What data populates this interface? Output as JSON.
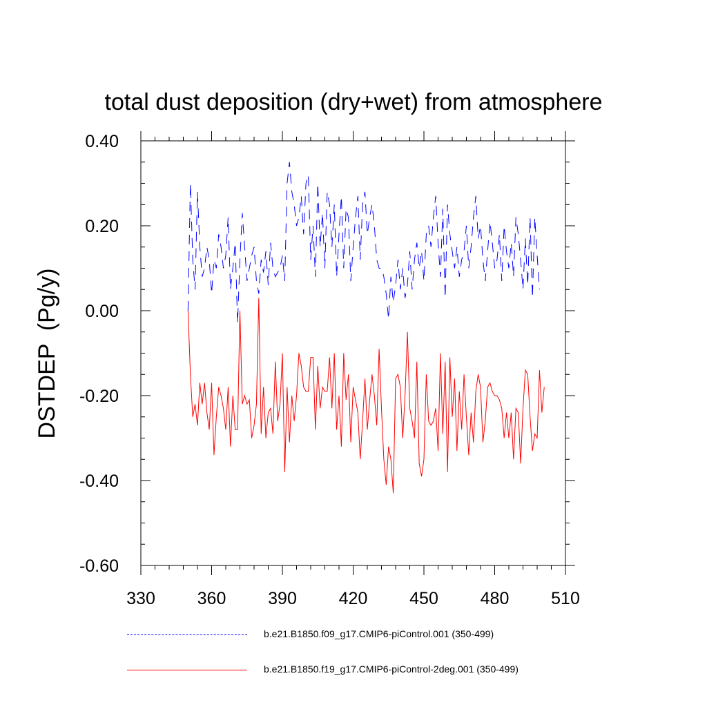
{
  "chart_data": {
    "type": "line",
    "title": "total dust deposition (dry+wet) from atmosphere",
    "xlabel": "",
    "ylabel": "DSTDEP  (Pg/y)",
    "xlim": [
      330,
      510
    ],
    "ylim": [
      -0.6,
      0.4
    ],
    "xticks": [
      330,
      360,
      390,
      420,
      450,
      480,
      510
    ],
    "xtick_labels": [
      "330",
      "360",
      "390",
      "420",
      "450",
      "480",
      "510"
    ],
    "yticks": [
      0.4,
      0.2,
      0.0,
      -0.2,
      -0.4,
      -0.6
    ],
    "ytick_labels": [
      "0.40",
      "0.20",
      "0.00",
      "-0.20",
      "-0.40",
      "-0.60"
    ],
    "x_start": 350,
    "series": [
      {
        "name": "b.e21.B1850.f09_g17.CMIP6-piControl.001 (350-499)",
        "color": "#0000ff",
        "style": "dashed",
        "values": [
          0.0,
          0.3,
          0.12,
          0.05,
          0.28,
          0.15,
          0.08,
          0.1,
          0.15,
          0.12,
          0.04,
          0.12,
          0.1,
          0.18,
          0.15,
          0.1,
          0.13,
          0.22,
          0.05,
          0.1,
          0.16,
          -0.03,
          0.12,
          0.23,
          0.15,
          0.07,
          0.1,
          0.13,
          0.15,
          0.07,
          0.04,
          0.12,
          0.09,
          0.14,
          0.06,
          0.16,
          0.1,
          0.08,
          0.09,
          0.1,
          0.13,
          0.07,
          0.3,
          0.35,
          0.28,
          0.25,
          0.2,
          0.22,
          0.27,
          0.18,
          0.3,
          0.32,
          0.12,
          0.2,
          0.08,
          0.3,
          0.15,
          0.23,
          0.1,
          0.28,
          0.25,
          0.15,
          0.25,
          0.08,
          0.18,
          0.27,
          0.1,
          0.24,
          0.22,
          0.07,
          0.15,
          0.22,
          0.27,
          0.12,
          0.25,
          0.28,
          0.18,
          0.22,
          0.25,
          0.2,
          0.12,
          0.1,
          0.1,
          0.08,
          0.04,
          -0.02,
          0.08,
          0.02,
          0.06,
          0.12,
          0.05,
          0.1,
          0.03,
          0.06,
          0.14,
          0.05,
          0.12,
          0.16,
          0.1,
          0.14,
          0.07,
          0.18,
          0.2,
          0.15,
          0.22,
          0.27,
          0.16,
          0.08,
          0.24,
          0.03,
          0.25,
          0.18,
          0.14,
          0.1,
          0.15,
          0.08,
          0.12,
          0.14,
          0.2,
          0.1,
          0.15,
          0.22,
          0.27,
          0.17,
          0.2,
          0.12,
          0.07,
          0.14,
          0.21,
          0.16,
          0.1,
          0.12,
          0.18,
          0.07,
          0.2,
          0.14,
          0.1,
          0.16,
          0.08,
          0.22,
          0.18,
          0.12,
          0.05,
          0.17,
          0.06,
          0.22,
          0.03,
          0.22,
          0.13,
          0.05
        ]
      },
      {
        "name": "b.e21.B1850.f19_g17.CMIP6-piControl-2deg.001 (350-499)",
        "color": "#ff0000",
        "style": "solid",
        "values": [
          0.0,
          -0.15,
          -0.25,
          -0.22,
          -0.27,
          -0.17,
          -0.22,
          -0.17,
          -0.24,
          -0.28,
          -0.17,
          -0.34,
          -0.25,
          -0.18,
          -0.2,
          -0.23,
          -0.28,
          -0.18,
          -0.32,
          -0.2,
          -0.28,
          -0.28,
          0.0,
          -0.22,
          -0.2,
          -0.22,
          -0.21,
          -0.3,
          -0.27,
          -0.22,
          0.03,
          -0.29,
          -0.18,
          -0.3,
          -0.24,
          -0.23,
          -0.29,
          -0.12,
          -0.26,
          -0.22,
          -0.1,
          -0.38,
          -0.18,
          -0.31,
          -0.2,
          -0.26,
          -0.2,
          -0.1,
          -0.13,
          -0.18,
          -0.19,
          -0.19,
          -0.11,
          -0.11,
          -0.28,
          -0.13,
          -0.23,
          -0.18,
          -0.19,
          -0.19,
          -0.11,
          -0.23,
          -0.1,
          -0.28,
          -0.2,
          -0.32,
          -0.1,
          -0.21,
          -0.15,
          -0.31,
          -0.18,
          -0.21,
          -0.24,
          -0.35,
          -0.26,
          -0.16,
          -0.28,
          -0.21,
          -0.15,
          -0.2,
          -0.27,
          -0.09,
          -0.23,
          -0.35,
          -0.41,
          -0.32,
          -0.35,
          -0.43,
          -0.16,
          -0.15,
          -0.18,
          -0.3,
          -0.2,
          -0.05,
          -0.23,
          -0.26,
          -0.3,
          -0.12,
          -0.36,
          -0.39,
          -0.35,
          -0.15,
          -0.26,
          -0.27,
          -0.26,
          -0.23,
          -0.33,
          -0.1,
          -0.29,
          -0.12,
          -0.38,
          -0.11,
          -0.25,
          -0.16,
          -0.33,
          -0.19,
          -0.28,
          -0.15,
          -0.25,
          -0.34,
          -0.24,
          -0.31,
          -0.19,
          -0.15,
          -0.18,
          -0.31,
          -0.26,
          -0.18,
          -0.17,
          -0.19,
          -0.2,
          -0.2,
          -0.21,
          -0.23,
          -0.3,
          -0.24,
          -0.3,
          -0.24,
          -0.35,
          -0.23,
          -0.24,
          -0.36,
          -0.23,
          -0.14,
          -0.15,
          -0.25,
          -0.33,
          -0.29,
          -0.3,
          -0.14,
          -0.24,
          -0.18
        ]
      }
    ]
  }
}
